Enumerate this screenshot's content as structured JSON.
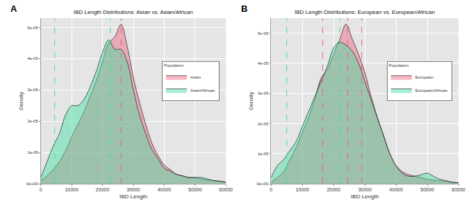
{
  "chart_data": [
    {
      "type": "density",
      "panel": "A",
      "title": "IBD Length Distributions: Asian vs. Asian/African",
      "x_label": "IBD Length",
      "y_label": "Density",
      "legend_title": "Population",
      "legend": "right",
      "grid": true,
      "x": [
        0,
        2000,
        4000,
        6000,
        8000,
        10000,
        12000,
        14000,
        16000,
        18000,
        20000,
        22000,
        24000,
        26000,
        28000,
        30000,
        32000,
        34000,
        36000,
        38000,
        40000,
        42000,
        44000,
        46000,
        48000,
        50000,
        52000,
        54000,
        56000,
        58000,
        60000
      ],
      "series": [
        {
          "name": "Asian",
          "color": "#F0607F",
          "values": [
            1e-06,
            2.5e-06,
            4.5e-06,
            7e-06,
            1.05e-05,
            1.5e-05,
            1.9e-05,
            2.3e-05,
            2.8e-05,
            3.3e-05,
            3.9e-05,
            4.5e-05,
            4.7e-05,
            5.1e-05,
            4.4e-05,
            3.4e-05,
            2.6e-05,
            1.9e-05,
            1.3e-05,
            9e-06,
            6e-06,
            4.5e-06,
            3e-06,
            2.5e-06,
            2e-06,
            2e-06,
            1.5e-06,
            1.2e-06,
            1e-06,
            8e-07,
            5e-07
          ]
        },
        {
          "name": "Asian/African",
          "color": "#40E0A0",
          "values": [
            2e-06,
            7e-06,
            1.2e-05,
            1.6e-05,
            2.2e-05,
            2.5e-05,
            2.5e-05,
            2.7e-05,
            3.1e-05,
            3.6e-05,
            4.2e-05,
            4.6e-05,
            4.3e-05,
            4.3e-05,
            3.9e-05,
            3e-05,
            2.2e-05,
            1.6e-05,
            1.1e-05,
            8e-06,
            5e-06,
            4e-06,
            3e-06,
            2.5e-06,
            2e-06,
            2e-06,
            2e-06,
            1.5e-06,
            1e-06,
            8e-07,
            5e-07
          ]
        }
      ],
      "vlines": [
        {
          "value": 4500,
          "color": "#40E0A0"
        },
        {
          "value": 22500,
          "color": "#40E0A0"
        },
        {
          "value": 26000,
          "color": "#F0607F"
        }
      ],
      "xlim": [
        0,
        60000
      ],
      "xticks": [
        0,
        10000,
        20000,
        30000,
        40000,
        50000,
        60000
      ],
      "ylim": [
        0,
        5.3e-05
      ],
      "yticks": [
        {
          "value": 0,
          "label": "0e+00"
        },
        {
          "value": 1e-05,
          "label": "1e-05"
        },
        {
          "value": 2e-05,
          "label": "2e-05"
        },
        {
          "value": 3e-05,
          "label": "3e-05"
        },
        {
          "value": 4e-05,
          "label": "4e-05"
        },
        {
          "value": 5e-05,
          "label": "5e-05"
        }
      ]
    },
    {
      "type": "density",
      "panel": "B",
      "title": "IBD Length Distributions: European vs. European/African",
      "x_label": "IBD Length",
      "y_label": "Density",
      "legend_title": "Population",
      "legend": "right",
      "grid": true,
      "x": [
        0,
        2000,
        4000,
        6000,
        8000,
        10000,
        12000,
        14000,
        16000,
        18000,
        20000,
        22000,
        24000,
        26000,
        28000,
        30000,
        32000,
        34000,
        36000,
        38000,
        40000,
        42000,
        44000,
        46000,
        48000,
        50000,
        52000,
        54000,
        56000,
        58000,
        60000
      ],
      "series": [
        {
          "name": "European",
          "color": "#F0607F",
          "values": [
            5e-07,
            2e-06,
            4e-06,
            8e-06,
            1.2e-05,
            1.7e-05,
            2.2e-05,
            2.8e-05,
            3.5e-05,
            3.8e-05,
            4.3e-05,
            4.8e-05,
            5.3e-05,
            4.8e-05,
            4.3e-05,
            3.7e-05,
            2.9e-05,
            2.2e-05,
            1.6e-05,
            1e-05,
            6e-06,
            4e-06,
            3e-06,
            2.5e-06,
            2e-06,
            1.5e-06,
            1.2e-06,
            1e-06,
            8e-07,
            5e-07,
            3e-07
          ]
        },
        {
          "name": "European/African",
          "color": "#40E0A0",
          "values": [
            2e-06,
            6e-06,
            8e-06,
            1.1e-05,
            1.4e-05,
            1.9e-05,
            2.4e-05,
            2.9e-05,
            3.4e-05,
            3.9e-05,
            4.5e-05,
            4.7e-05,
            4.6e-05,
            4.4e-05,
            4e-05,
            3.4e-05,
            2.8e-05,
            2.2e-05,
            1.6e-05,
            1e-05,
            6e-06,
            3.5e-06,
            2.5e-06,
            2.5e-06,
            3e-06,
            3.5e-06,
            2.5e-06,
            1.5e-06,
            1e-06,
            5e-07,
            3e-07
          ]
        }
      ],
      "vlines": [
        {
          "value": 5000,
          "color": "#40E0A0"
        },
        {
          "value": 22000,
          "color": "#40E0A0"
        },
        {
          "value": 16500,
          "color": "#F0607F"
        },
        {
          "value": 24500,
          "color": "#F0607F"
        },
        {
          "value": 29000,
          "color": "#F0607F"
        }
      ],
      "xlim": [
        0,
        60000
      ],
      "xticks": [
        0,
        10000,
        20000,
        30000,
        40000,
        50000,
        60000
      ],
      "ylim": [
        0,
        5.5e-05
      ],
      "yticks": [
        {
          "value": 0,
          "label": "0e+00"
        },
        {
          "value": 1e-05,
          "label": "1e-05"
        },
        {
          "value": 2e-05,
          "label": "2e-05"
        },
        {
          "value": 3e-05,
          "label": "3e-05"
        },
        {
          "value": 4e-05,
          "label": "4e-05"
        },
        {
          "value": 5e-05,
          "label": "5e-05"
        }
      ]
    }
  ]
}
